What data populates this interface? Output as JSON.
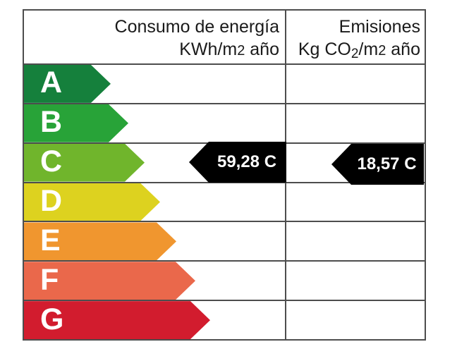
{
  "table": {
    "border_color": "#4d4d4d",
    "header": {
      "consumo": {
        "line1": "Consumo de energía",
        "line2_prefix": "KWh/m",
        "line2_exp": "2",
        "line2_suffix": " año"
      },
      "emisiones": {
        "line1": "Emisiones",
        "line2_prefix": "Kg CO",
        "line2_sub": "2",
        "line2_mid": "/m",
        "line2_exp": "2",
        "line2_suffix": " año"
      }
    },
    "bands": [
      {
        "letter": "A",
        "color": "#15803c"
      },
      {
        "letter": "B",
        "color": "#28a338"
      },
      {
        "letter": "C",
        "color": "#70b52c"
      },
      {
        "letter": "D",
        "color": "#ddd21f"
      },
      {
        "letter": "E",
        "color": "#f0962f"
      },
      {
        "letter": "F",
        "color": "#ea684b"
      },
      {
        "letter": "G",
        "color": "#d21c2e"
      }
    ],
    "markers": {
      "consumo": {
        "label": "59,28 C",
        "value": "59,28",
        "rating": "C",
        "row": "C",
        "color": "#000000",
        "text_color": "#ffffff"
      },
      "emisiones": {
        "label": "18,57 C",
        "value": "18,57",
        "rating": "C",
        "row": "C",
        "color": "#000000",
        "text_color": "#ffffff"
      }
    }
  },
  "chart_data": {
    "type": "table",
    "columns": [
      "Consumo de energía KWh/m2 año",
      "Emisiones Kg CO2/m2 año"
    ],
    "categories": [
      "A",
      "B",
      "C",
      "D",
      "E",
      "F",
      "G"
    ],
    "band_colors": [
      "#15803c",
      "#28a338",
      "#70b52c",
      "#ddd21f",
      "#f0962f",
      "#ea684b",
      "#d21c2e"
    ],
    "indicators": [
      {
        "column": "Consumo de energía KWh/m2 año",
        "value": 59.28,
        "rating": "C",
        "label": "59,28 C"
      },
      {
        "column": "Emisiones Kg CO2/m2 año",
        "value": 18.57,
        "rating": "C",
        "label": "18,57 C"
      }
    ],
    "legend_position": "none",
    "grid": true
  }
}
